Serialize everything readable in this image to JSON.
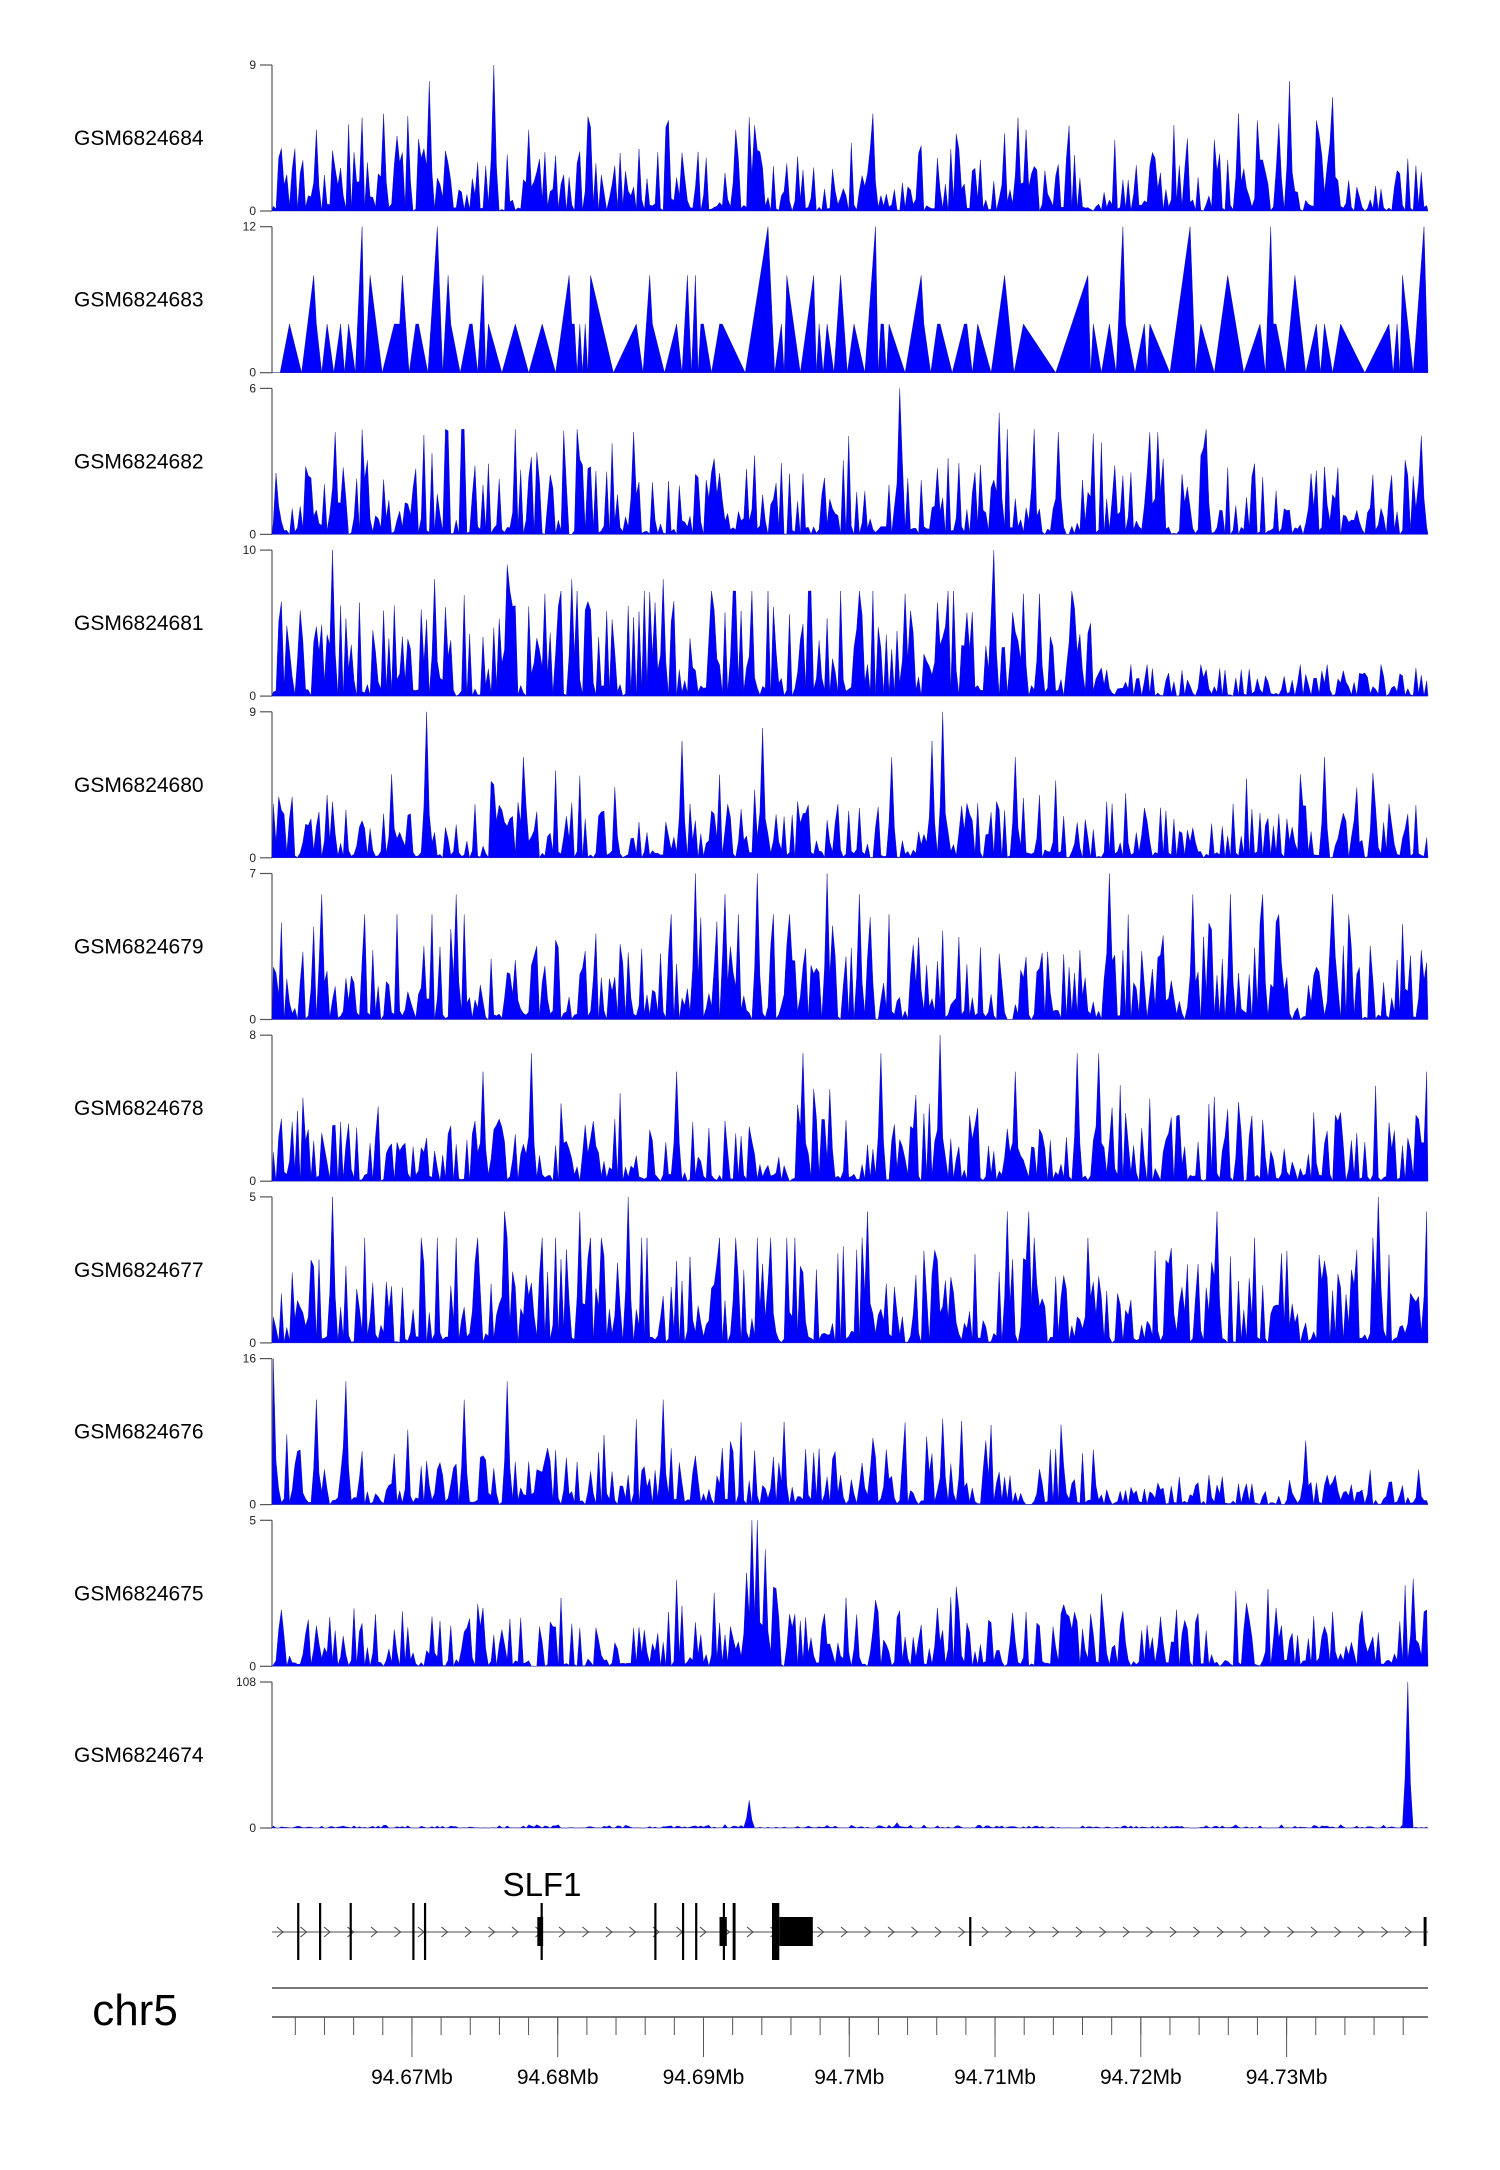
{
  "chart_data": {
    "type": "area",
    "title": "",
    "xlabel": "",
    "chromosome": "chr5",
    "xlim_mb": [
      94.6604,
      94.7397
    ],
    "x_tick_labels": [
      {
        "mb": 94.67,
        "label": "94.67Mb"
      },
      {
        "mb": 94.68,
        "label": "94.68Mb"
      },
      {
        "mb": 94.69,
        "label": "94.69Mb"
      },
      {
        "mb": 94.7,
        "label": "94.7Mb"
      },
      {
        "mb": 94.71,
        "label": "94.71Mb"
      },
      {
        "mb": 94.72,
        "label": "94.72Mb"
      },
      {
        "mb": 94.73,
        "label": "94.73Mb"
      }
    ],
    "minor_tick_step_mb": 0.002,
    "tracks": [
      {
        "name": "GSM6824684",
        "ymax": 9,
        "ymin": 0,
        "background": 0.33,
        "peaks": [
          [
            94.6757,
            9
          ],
          [
            94.6712,
            8
          ],
          [
            94.7302,
            8
          ],
          [
            94.7331,
            7
          ],
          [
            94.7267,
            6
          ],
          [
            94.668,
            6
          ],
          [
            94.7017,
            6
          ],
          [
            94.6634,
            5
          ],
          [
            94.678,
            5
          ],
          [
            94.6922,
            5
          ],
          [
            94.7122,
            5
          ]
        ]
      },
      {
        "name": "GSM6824683",
        "ymax": 12,
        "ymin": 0,
        "background": 0.33,
        "sparse": true,
        "peaks": [
          [
            94.6666,
            12
          ],
          [
            94.6718,
            12
          ],
          [
            94.6945,
            12
          ],
          [
            94.7018,
            12
          ],
          [
            94.7187,
            12
          ],
          [
            94.7234,
            12
          ],
          [
            94.7289,
            12
          ],
          [
            94.7395,
            12
          ],
          [
            94.6632,
            8
          ],
          [
            94.6672,
            8
          ],
          [
            94.6694,
            8
          ],
          [
            94.6724,
            8
          ],
          [
            94.6748,
            8
          ],
          [
            94.6808,
            8
          ],
          [
            94.6823,
            8
          ],
          [
            94.6863,
            8
          ],
          [
            94.6889,
            8
          ],
          [
            94.6894,
            8
          ],
          [
            94.6958,
            8
          ],
          [
            94.6976,
            8
          ],
          [
            94.6994,
            8
          ],
          [
            94.705,
            8
          ],
          [
            94.7107,
            8
          ],
          [
            94.7163,
            8
          ],
          [
            94.7259,
            8
          ],
          [
            94.7305,
            8
          ],
          [
            94.738,
            8
          ]
        ]
      },
      {
        "name": "GSM6824682",
        "ymax": 6,
        "ymin": 0,
        "background": 0.4,
        "peaks": [
          [
            94.7035,
            6
          ],
          [
            94.7102,
            5
          ],
          [
            94.6648,
            4.2
          ],
          [
            94.6852,
            4.2
          ],
          [
            94.7143,
            4.2
          ],
          [
            94.7207,
            4.2
          ],
          [
            94.7212,
            4.2
          ]
        ]
      },
      {
        "name": "GSM6824681",
        "ymax": 10,
        "ymin": 0,
        "background": 0.5,
        "low_region": {
          "from_mb": 94.7171,
          "factor": 0.3
        },
        "peaks": [
          [
            94.6646,
            10
          ],
          [
            94.71,
            10
          ],
          [
            94.6765,
            9
          ],
          [
            94.6715,
            8
          ],
          [
            94.681,
            8
          ],
          [
            94.6873,
            8
          ],
          [
            94.7038,
            7
          ],
          [
            94.712,
            7
          ],
          [
            94.713,
            7
          ]
        ]
      },
      {
        "name": "GSM6824680",
        "ymax": 9,
        "ymin": 0,
        "background": 0.3,
        "peaks": [
          [
            94.671,
            9
          ],
          [
            94.7065,
            9
          ],
          [
            94.6941,
            8
          ],
          [
            94.6885,
            7.2
          ],
          [
            94.7057,
            7.2
          ],
          [
            94.703,
            6.2
          ],
          [
            94.7114,
            6.2
          ],
          [
            94.7326,
            6.2
          ],
          [
            94.6776,
            6.2
          ]
        ]
      },
      {
        "name": "GSM6824679",
        "ymax": 7,
        "ymin": 0,
        "background": 0.4,
        "peaks": [
          [
            94.6894,
            7
          ],
          [
            94.6936,
            7
          ],
          [
            94.6985,
            7
          ],
          [
            94.7179,
            7
          ],
          [
            94.6639,
            6
          ],
          [
            94.6731,
            6
          ],
          [
            94.6915,
            6
          ],
          [
            94.7007,
            6
          ],
          [
            94.7235,
            6
          ],
          [
            94.7261,
            6
          ],
          [
            94.7283,
            6
          ],
          [
            94.7331,
            6
          ]
        ]
      },
      {
        "name": "GSM6824678",
        "ymax": 8,
        "ymin": 0,
        "background": 0.33,
        "peaks": [
          [
            94.7063,
            8
          ],
          [
            94.6782,
            7
          ],
          [
            94.6969,
            7
          ],
          [
            94.7021,
            7
          ],
          [
            94.7157,
            7
          ],
          [
            94.7171,
            7
          ],
          [
            94.6748,
            6
          ],
          [
            94.6881,
            6
          ],
          [
            94.7113,
            6
          ],
          [
            94.7396,
            6
          ]
        ]
      },
      {
        "name": "GSM6824677",
        "ymax": 5,
        "ymin": 0,
        "background": 0.5,
        "peaks": [
          [
            94.6646,
            5
          ],
          [
            94.6848,
            5
          ],
          [
            94.7362,
            5
          ],
          [
            94.6764,
            4.5
          ],
          [
            94.6816,
            4.5
          ],
          [
            94.7013,
            4.5
          ],
          [
            94.7108,
            4.5
          ],
          [
            94.7123,
            4.5
          ],
          [
            94.7252,
            4.5
          ],
          [
            94.7401,
            4.5
          ]
        ]
      },
      {
        "name": "GSM6824676",
        "ymax": 16,
        "ymin": 0,
        "background": 0.3,
        "low_region": {
          "from_mb": 94.7171,
          "factor": 0.4
        },
        "peaks": [
          [
            94.6605,
            16
          ],
          [
            94.6654,
            13.5
          ],
          [
            94.6766,
            13.5
          ],
          [
            94.6635,
            11.5
          ],
          [
            94.6735,
            11.5
          ],
          [
            94.6872,
            11.5
          ],
          [
            94.6955,
            7
          ],
          [
            94.7093,
            7
          ],
          [
            94.7314,
            7
          ]
        ]
      },
      {
        "name": "GSM6824675",
        "ymax": 5,
        "ymin": 0,
        "background": 0.3,
        "peaks": [
          [
            94.6934,
            5
          ],
          [
            94.6936,
            5
          ],
          [
            94.6942,
            4
          ],
          [
            94.693,
            3.2
          ],
          [
            94.7387,
            3
          ],
          [
            94.6749,
            2
          ],
          [
            94.706,
            2
          ],
          [
            94.7293,
            2
          ]
        ]
      },
      {
        "name": "GSM6824674",
        "ymax": 108,
        "ymin": 0,
        "background": 0.012,
        "peaks": [
          [
            94.6932,
            20.5
          ],
          [
            94.7383,
            108
          ],
          [
            94.6984,
            2
          ],
          [
            94.7032,
            4
          ]
        ]
      }
    ],
    "gene": {
      "name": "SLF1",
      "strand": "+",
      "start_mb": 94.6604,
      "end_mb": 94.7397,
      "exons": [
        {
          "start": 94.6622,
          "end": 94.6622,
          "kind": "tall"
        },
        {
          "start": 94.6637,
          "end": 94.6638,
          "kind": "tall"
        },
        {
          "start": 94.6658,
          "end": 94.6658,
          "kind": "tall"
        },
        {
          "start": 94.6701,
          "end": 94.6701,
          "kind": "tall"
        },
        {
          "start": 94.6709,
          "end": 94.6709,
          "kind": "tall"
        },
        {
          "start": 94.6786,
          "end": 94.679,
          "kind": "mid"
        },
        {
          "start": 94.6789,
          "end": 94.6789,
          "kind": "tall"
        },
        {
          "start": 94.6867,
          "end": 94.6867,
          "kind": "tall"
        },
        {
          "start": 94.6886,
          "end": 94.6886,
          "kind": "tall"
        },
        {
          "start": 94.6895,
          "end": 94.6895,
          "kind": "tall"
        },
        {
          "start": 94.6911,
          "end": 94.6916,
          "kind": "mid"
        },
        {
          "start": 94.6914,
          "end": 94.6915,
          "kind": "tall"
        },
        {
          "start": 94.692,
          "end": 94.6922,
          "kind": "tall"
        },
        {
          "start": 94.6947,
          "end": 94.6952,
          "kind": "tall"
        },
        {
          "start": 94.6952,
          "end": 94.6975,
          "kind": "mid"
        },
        {
          "start": 94.7083,
          "end": 94.7083,
          "kind": "mid"
        },
        {
          "start": 94.7394,
          "end": 94.7396,
          "kind": "mid"
        }
      ]
    },
    "colors": {
      "fill": "#0000ff",
      "exon": "#000000",
      "axis": "#555555"
    }
  }
}
